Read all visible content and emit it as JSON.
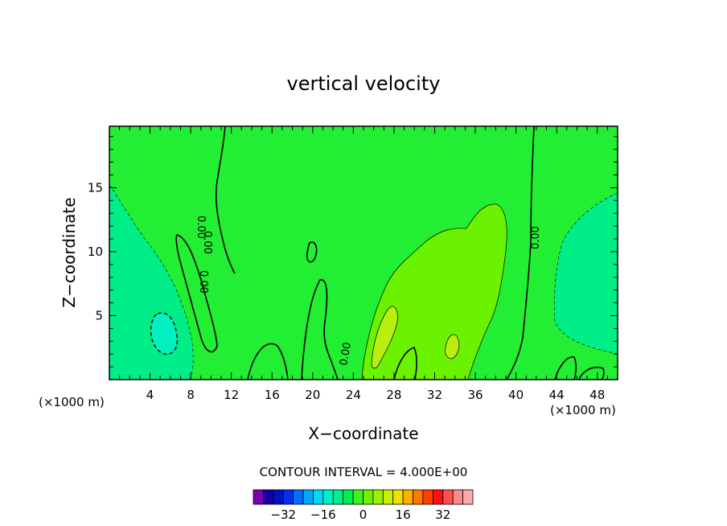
{
  "chart_data": {
    "type": "heatmap",
    "title": "vertical velocity",
    "xlabel": "X−coordinate",
    "ylabel": "Z−coordinate",
    "x_unit_left": "(×1000 m)",
    "x_unit_right": "(×1000 m)",
    "x_ticks": [
      4,
      8,
      12,
      16,
      20,
      24,
      28,
      32,
      36,
      40,
      44,
      48
    ],
    "y_ticks": [
      5,
      10,
      15
    ],
    "xlim": [
      0,
      50
    ],
    "ylim": [
      0,
      19.8
    ],
    "contour_interval_text": "CONTOUR INTERVAL = 4.000E+00",
    "contour_labels": [
      "0.00",
      "0.00",
      "0.00",
      "0.00",
      "0.00"
    ],
    "colorbar": {
      "ticks": [
        "−32",
        "−16",
        "0",
        "16",
        "32"
      ],
      "tick_values": [
        -32,
        -16,
        0,
        16,
        32
      ],
      "colors": [
        "#7a00b0",
        "#1800a0",
        "#0010c8",
        "#0030f0",
        "#0070ff",
        "#00a8ff",
        "#00d8f0",
        "#00f0c8",
        "#00f090",
        "#00f050",
        "#40f020",
        "#70f000",
        "#a0f000",
        "#c8f000",
        "#f0e000",
        "#ffb000",
        "#ff7800",
        "#ff4000",
        "#ff1010",
        "#ff5050",
        "#ff8888",
        "#ffaaaa"
      ]
    },
    "field_colors": {
      "background": "#22ee33",
      "pos_level1": "#6af200",
      "pos_level2": "#b8ee10",
      "neg_level1": "#00ee88",
      "neg_level2": "#00f0c0"
    }
  }
}
